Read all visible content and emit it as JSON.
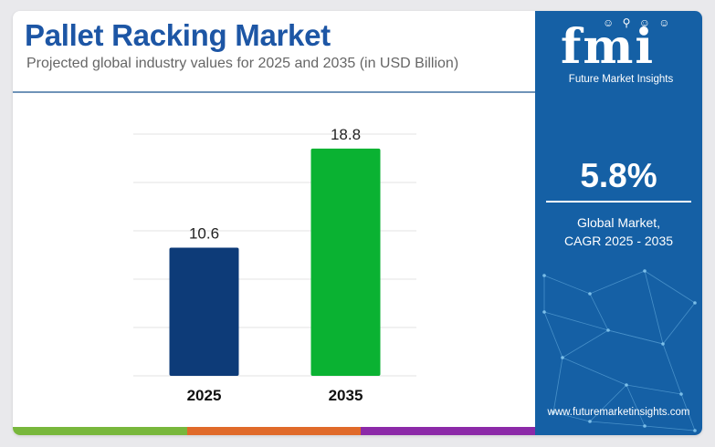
{
  "header": {
    "title": "Pallet Racking Market",
    "subtitle": "Projected global industry values for 2025 and 2035 (in USD Billion)"
  },
  "chart_data": {
    "type": "bar",
    "title": "Pallet Racking Market",
    "subtitle": "Projected global industry values for 2025 and 2035 (in USD Billion)",
    "categories": [
      "2025",
      "2035"
    ],
    "values": [
      10.6,
      18.8
    ],
    "value_labels": [
      "10.6",
      "18.8"
    ],
    "bar_colors": [
      "#0d3b78",
      "#0ab232"
    ],
    "xlabel": "",
    "ylabel": "",
    "ylim": [
      0,
      20
    ],
    "grid": true,
    "legend": "none"
  },
  "sidebar": {
    "logo_mark": "fmi",
    "logo_text": "Future Market Insights",
    "cagr_value": "5.8%",
    "cagr_label_line1": "Global Market,",
    "cagr_label_line2": "CAGR 2025 - 2035",
    "website": "www.futuremarketinsights.com"
  },
  "theme": {
    "title_color": "#1d56a5",
    "panel_color": "#1560a5",
    "bottom_bar_colors": [
      "#78b73c",
      "#e06a2a",
      "#8c2aa8"
    ]
  }
}
